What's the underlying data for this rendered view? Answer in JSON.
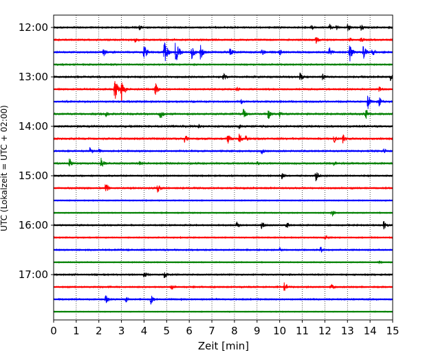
{
  "chart_data": {
    "type": "line",
    "title": "",
    "xlabel": "Zeit  [min]",
    "ylabel": "UTC (Lokalzeit = UTC + 02:00)",
    "xlim": [
      0,
      15
    ],
    "x_ticks": [
      0,
      1,
      2,
      3,
      4,
      5,
      6,
      7,
      8,
      9,
      10,
      11,
      12,
      13,
      14,
      15
    ],
    "x_tick_labels": [
      "0",
      "1",
      "2",
      "3",
      "4",
      "5",
      "6",
      "7",
      "8",
      "9",
      "10",
      "11",
      "12",
      "13",
      "14",
      "15"
    ],
    "y_tick_labels": [
      "12:00",
      "13:00",
      "14:00",
      "15:00",
      "16:00",
      "17:00"
    ],
    "y_tick_rows": [
      0,
      4,
      8,
      12,
      16,
      20
    ],
    "grid": "vertical dotted",
    "colors": [
      "#000000",
      "#ff0000",
      "#0000ff",
      "#008000"
    ],
    "series": [
      {
        "row": 0,
        "color": "#000000",
        "noise": 0.9,
        "events": [
          [
            3.8,
            1.5
          ],
          [
            11.4,
            1.5
          ],
          [
            12.2,
            2.2
          ],
          [
            12.5,
            2.0
          ],
          [
            13.0,
            2.2
          ],
          [
            13.6,
            2.0
          ]
        ]
      },
      {
        "row": 1,
        "color": "#ff0000",
        "noise": 0.9,
        "events": [
          [
            3.6,
            1.5
          ],
          [
            11.6,
            2.0
          ],
          [
            13.1,
            1.5
          ],
          [
            13.6,
            1.5
          ]
        ]
      },
      {
        "row": 2,
        "color": "#0000ff",
        "noise": 1.0,
        "events": [
          [
            2.2,
            2.5
          ],
          [
            4.0,
            4.5
          ],
          [
            4.9,
            7.0
          ],
          [
            5.4,
            8.0
          ],
          [
            6.1,
            4.0
          ],
          [
            6.5,
            4.5
          ],
          [
            7.8,
            2.5
          ],
          [
            9.2,
            2.5
          ],
          [
            10.0,
            2.0
          ],
          [
            12.2,
            3.0
          ],
          [
            13.1,
            5.0
          ],
          [
            13.7,
            4.0
          ],
          [
            14.1,
            2.5
          ]
        ]
      },
      {
        "row": 3,
        "color": "#008000",
        "noise": 0.8,
        "events": []
      },
      {
        "row": 4,
        "color": "#000000",
        "noise": 1.0,
        "events": [
          [
            7.5,
            2.5
          ],
          [
            10.9,
            2.5
          ],
          [
            11.9,
            2.0
          ],
          [
            14.9,
            2.0
          ]
        ]
      },
      {
        "row": 5,
        "color": "#ff0000",
        "noise": 0.9,
        "events": [
          [
            2.7,
            7.0
          ],
          [
            3.0,
            6.0
          ],
          [
            4.5,
            3.5
          ],
          [
            8.1,
            1.5
          ],
          [
            14.4,
            2.0
          ]
        ]
      },
      {
        "row": 6,
        "color": "#0000ff",
        "noise": 1.0,
        "events": [
          [
            8.3,
            1.5
          ],
          [
            13.9,
            4.0
          ],
          [
            14.4,
            2.5
          ]
        ]
      },
      {
        "row": 7,
        "color": "#008000",
        "noise": 1.0,
        "events": [
          [
            2.3,
            2.0
          ],
          [
            4.7,
            3.0
          ],
          [
            8.4,
            3.0
          ],
          [
            9.5,
            3.5
          ],
          [
            10.0,
            2.0
          ],
          [
            13.8,
            3.5
          ]
        ]
      },
      {
        "row": 8,
        "color": "#000000",
        "noise": 1.1,
        "events": [
          [
            6.4,
            1.5
          ],
          [
            8.2,
            1.5
          ]
        ]
      },
      {
        "row": 9,
        "color": "#ff0000",
        "noise": 1.1,
        "events": [
          [
            5.8,
            3.0
          ],
          [
            7.7,
            3.0
          ],
          [
            8.2,
            3.0
          ],
          [
            8.5,
            2.0
          ],
          [
            12.4,
            2.5
          ],
          [
            12.8,
            2.5
          ]
        ]
      },
      {
        "row": 10,
        "color": "#0000ff",
        "noise": 0.9,
        "events": [
          [
            1.6,
            2.0
          ],
          [
            2.0,
            1.5
          ],
          [
            9.2,
            2.0
          ],
          [
            14.6,
            1.5
          ]
        ]
      },
      {
        "row": 11,
        "color": "#008000",
        "noise": 1.0,
        "events": [
          [
            0.7,
            3.0
          ],
          [
            2.1,
            3.0
          ],
          [
            3.8,
            1.5
          ],
          [
            9.0,
            1.5
          ],
          [
            12.4,
            1.5
          ]
        ]
      },
      {
        "row": 12,
        "color": "#000000",
        "noise": 0.8,
        "events": [
          [
            10.1,
            2.0
          ],
          [
            11.6,
            3.0
          ]
        ]
      },
      {
        "row": 13,
        "color": "#ff0000",
        "noise": 0.9,
        "events": [
          [
            2.3,
            3.0
          ],
          [
            4.6,
            2.5
          ]
        ]
      },
      {
        "row": 14,
        "color": "#0000ff",
        "noise": 0.6,
        "events": []
      },
      {
        "row": 15,
        "color": "#008000",
        "noise": 0.6,
        "events": [
          [
            12.3,
            2.0
          ]
        ]
      },
      {
        "row": 16,
        "color": "#000000",
        "noise": 0.8,
        "events": [
          [
            8.1,
            2.0
          ],
          [
            9.2,
            2.0
          ],
          [
            10.3,
            2.0
          ],
          [
            14.6,
            2.5
          ]
        ]
      },
      {
        "row": 17,
        "color": "#ff0000",
        "noise": 0.7,
        "events": [
          [
            12.0,
            1.5
          ]
        ]
      },
      {
        "row": 18,
        "color": "#0000ff",
        "noise": 0.8,
        "events": [
          [
            10.0,
            1.5
          ],
          [
            11.8,
            2.0
          ]
        ]
      },
      {
        "row": 19,
        "color": "#008000",
        "noise": 0.6,
        "events": [
          [
            14.4,
            1.5
          ]
        ]
      },
      {
        "row": 20,
        "color": "#000000",
        "noise": 0.8,
        "events": [
          [
            4.0,
            2.0
          ],
          [
            4.9,
            2.0
          ]
        ]
      },
      {
        "row": 21,
        "color": "#ff0000",
        "noise": 0.8,
        "events": [
          [
            5.2,
            2.0
          ],
          [
            10.2,
            2.5
          ],
          [
            12.3,
            1.5
          ]
        ]
      },
      {
        "row": 22,
        "color": "#0000ff",
        "noise": 0.8,
        "events": [
          [
            2.3,
            2.5
          ],
          [
            3.2,
            2.0
          ],
          [
            4.3,
            2.5
          ]
        ]
      },
      {
        "row": 23,
        "color": "#008000",
        "noise": 0.5,
        "events": []
      }
    ]
  }
}
